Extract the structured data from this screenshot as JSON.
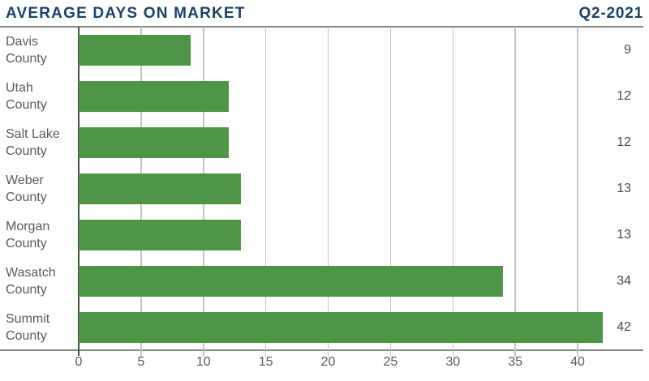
{
  "header": {
    "title": "AVERAGE DAYS ON MARKET",
    "period": "Q2-2021"
  },
  "chart_data": {
    "type": "bar",
    "orientation": "horizontal",
    "title": "AVERAGE DAYS ON MARKET",
    "subtitle": "Q2-2021",
    "categories": [
      "Davis County",
      "Utah County",
      "Salt Lake County",
      "Weber County",
      "Morgan County",
      "Wasatch County",
      "Summit County"
    ],
    "values": [
      9,
      12,
      12,
      13,
      13,
      34,
      42
    ],
    "value_labels": [
      "9",
      "12",
      "12",
      "13",
      "13",
      "34",
      "42"
    ],
    "xlabel": "",
    "ylabel": "",
    "xlim": [
      0,
      45
    ],
    "x_ticks": [
      0,
      5,
      10,
      15,
      20,
      25,
      30,
      35,
      40
    ],
    "grid": true,
    "legend": false
  },
  "colors": {
    "title": "#1a4168",
    "bar": "#4e9546",
    "label": "#58595b",
    "value": "#48494b",
    "gridline": "#c4c5c7",
    "axis_line": "#85878a",
    "zero_axis": "#4a4a4c"
  }
}
